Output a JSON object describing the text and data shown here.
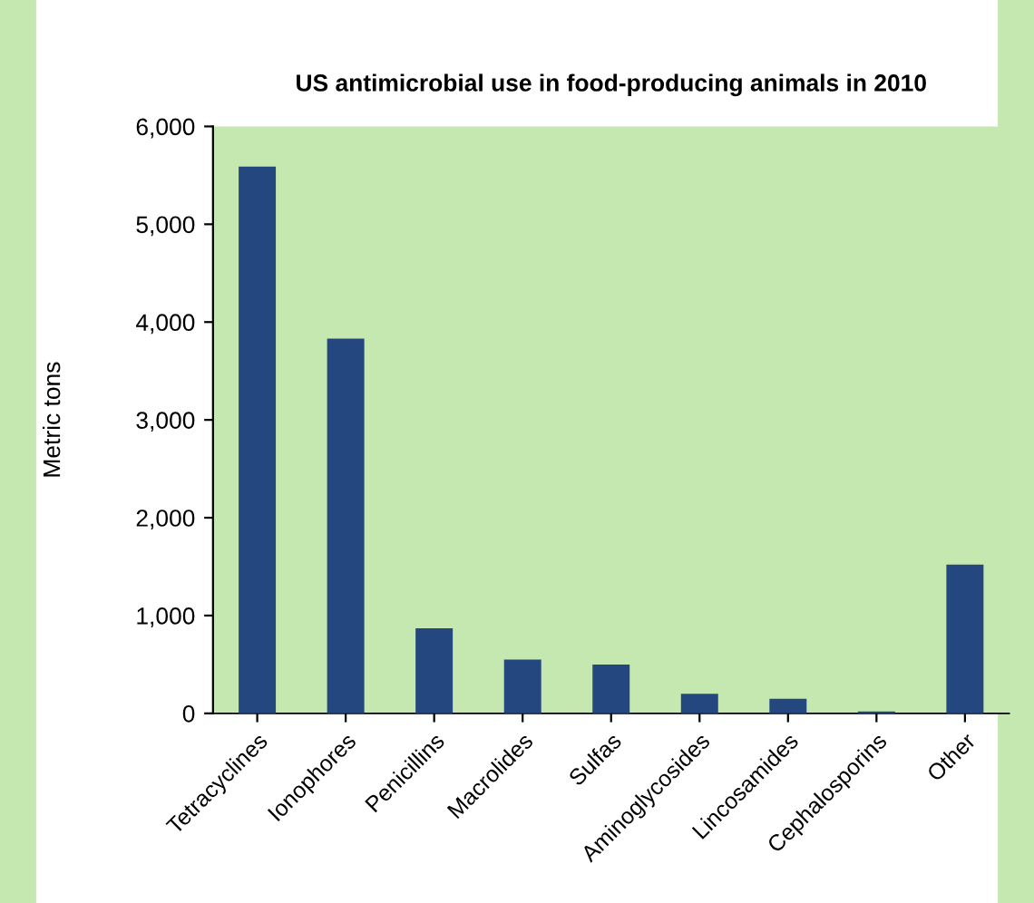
{
  "chart_data": {
    "type": "bar",
    "title": "US antimicrobial use in food-producing animals in 2010",
    "ylabel": "Metric tons",
    "categories": [
      "Tetracyclines",
      "Ionophores",
      "Penicillins",
      "Macrolides",
      "Sulfas",
      "Aminoglycosides",
      "Lincosamides",
      "Cephalosporins",
      "Other"
    ],
    "values": [
      5590,
      3830,
      870,
      550,
      500,
      200,
      150,
      20,
      1520
    ],
    "color": "#23477e",
    "ylim": [
      0,
      6000
    ],
    "yticks": [
      0,
      {
        "value": 1000,
        "label": "1,000"
      },
      {
        "value": 2000,
        "label": "2,000"
      },
      {
        "value": 3000,
        "label": "3,000"
      },
      {
        "value": 4000,
        "label": "4,000"
      },
      {
        "value": 5000,
        "label": "5,000"
      },
      {
        "value": 6000,
        "label": "6,000"
      }
    ],
    "grid": false,
    "legend": false
  }
}
